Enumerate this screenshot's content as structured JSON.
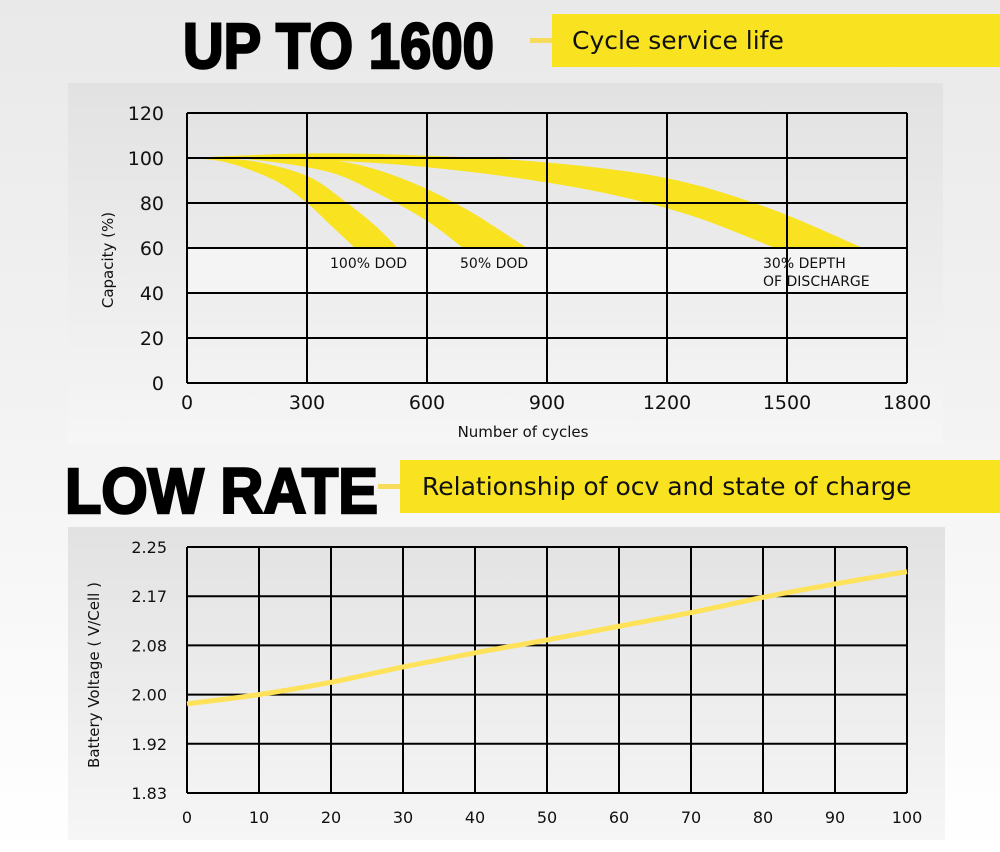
{
  "section1": {
    "headline": "UP TO 1600",
    "banner": "Cycle service life"
  },
  "section2": {
    "headline": "LOW RATE",
    "banner": "Relationship of ocv and state of charge"
  },
  "colors": {
    "accent": "#f9e21f",
    "line": "#fde25a",
    "grid": "#000000"
  },
  "chart_data": [
    {
      "type": "area",
      "xlabel": "Number of cycles",
      "ylabel": "Capacity (%)",
      "xlim": [
        0,
        1800
      ],
      "ylim": [
        0,
        120
      ],
      "xticks": [
        "0",
        "300",
        "600",
        "900",
        "1200",
        "1500",
        "1800"
      ],
      "yticks": [
        "0",
        "20",
        "40",
        "60",
        "80",
        "100",
        "120"
      ],
      "grid": true,
      "series": [
        {
          "name": "100% DOD",
          "upper": [
            [
              0,
              100
            ],
            [
              150,
              99
            ],
            [
              300,
              92
            ],
            [
              400,
              80
            ],
            [
              470,
              70
            ],
            [
              527,
              60
            ]
          ],
          "lower": [
            [
              0,
              100
            ],
            [
              100,
              98
            ],
            [
              220,
              90
            ],
            [
              300,
              80
            ],
            [
              360,
              70
            ],
            [
              420,
              60
            ]
          ]
        },
        {
          "name": "50% DOD",
          "upper": [
            [
              0,
              100
            ],
            [
              200,
              101
            ],
            [
              400,
              98
            ],
            [
              550,
              90
            ],
            [
              700,
              77
            ],
            [
              850,
              60
            ]
          ],
          "lower": [
            [
              0,
              100
            ],
            [
              150,
              99.5
            ],
            [
              350,
              94
            ],
            [
              480,
              84
            ],
            [
              600,
              72
            ],
            [
              690,
              60
            ]
          ]
        },
        {
          "name": "30% DEPTH OF DISCHARGE",
          "name_lines": [
            "30% DEPTH",
            "OF DISCHARGE"
          ],
          "upper": [
            [
              0,
              100
            ],
            [
              300,
              102
            ],
            [
              600,
              101
            ],
            [
              900,
              98
            ],
            [
              1200,
              91
            ],
            [
              1450,
              78
            ],
            [
              1690,
              60
            ]
          ],
          "lower": [
            [
              0,
              100
            ],
            [
              400,
              98.5
            ],
            [
              700,
              94
            ],
            [
              1000,
              86
            ],
            [
              1250,
              75
            ],
            [
              1470,
              60
            ]
          ]
        }
      ]
    },
    {
      "type": "line",
      "xlabel": "",
      "ylabel": "Battery Voltage ( V/Cell )",
      "xlim": [
        0,
        100
      ],
      "ylim": [
        1.83,
        2.25
      ],
      "xticks": [
        "0",
        "10",
        "20",
        "30",
        "40",
        "50",
        "60",
        "70",
        "80",
        "90",
        "100"
      ],
      "yticks": [
        "1.83",
        "1.92",
        "2.00",
        "2.08",
        "2.17",
        "2.25"
      ],
      "grid": true,
      "x": [
        0,
        10,
        20,
        30,
        40,
        50,
        60,
        70,
        80,
        90,
        100
      ],
      "y": [
        1.985,
        2.0,
        2.02,
        2.045,
        2.068,
        2.09,
        2.115,
        2.14,
        2.168,
        2.19,
        2.21
      ]
    }
  ]
}
